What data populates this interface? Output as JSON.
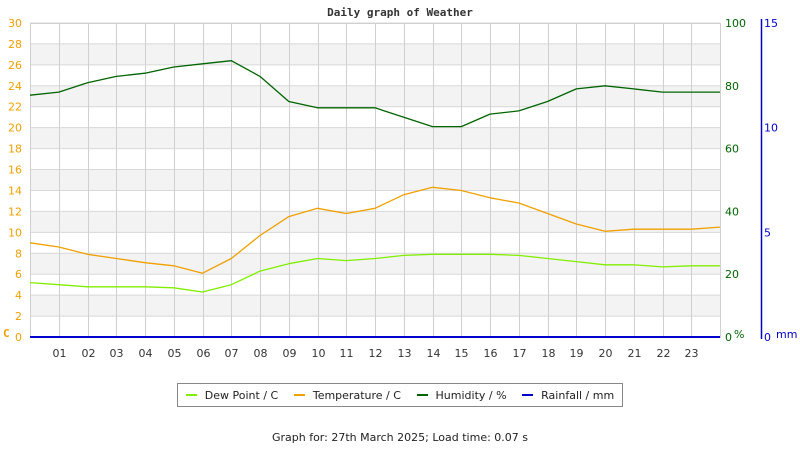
{
  "chart_data": {
    "type": "line",
    "title": "Daily graph of Weather",
    "x": [
      0,
      1,
      2,
      3,
      4,
      5,
      6,
      7,
      8,
      9,
      10,
      11,
      12,
      13,
      14,
      15,
      16,
      17,
      18,
      19,
      20,
      21,
      22,
      23,
      24
    ],
    "x_tick_labels": [
      "01",
      "02",
      "03",
      "04",
      "05",
      "06",
      "07",
      "08",
      "09",
      "10",
      "11",
      "12",
      "13",
      "14",
      "15",
      "16",
      "17",
      "18",
      "19",
      "20",
      "21",
      "22",
      "23"
    ],
    "xlabel": "",
    "axes": {
      "left": {
        "label": "C",
        "range": [
          0,
          30
        ],
        "ticks": [
          0,
          2,
          4,
          6,
          8,
          10,
          12,
          14,
          16,
          18,
          20,
          22,
          24,
          26,
          28,
          30
        ],
        "color": "#f0a000"
      },
      "right1": {
        "label": "%",
        "range": [
          0,
          100
        ],
        "ticks": [
          0,
          20,
          40,
          60,
          80,
          100
        ],
        "color": "#006400"
      },
      "right2": {
        "label": "mm",
        "range": [
          0,
          15
        ],
        "ticks": [
          0,
          5,
          10,
          15
        ],
        "color": "#0000cc"
      }
    },
    "series": [
      {
        "name": "Dew Point / C",
        "color": "#80ee00",
        "axis": "left",
        "values": [
          5.2,
          5.0,
          4.8,
          4.8,
          4.8,
          4.7,
          4.3,
          5.0,
          6.3,
          7.0,
          7.5,
          7.3,
          7.5,
          7.8,
          7.9,
          7.9,
          7.9,
          7.8,
          7.5,
          7.2,
          6.9,
          6.9,
          6.7,
          6.8,
          6.8
        ]
      },
      {
        "name": "Temperature / C",
        "color": "#f0a000",
        "axis": "left",
        "values": [
          9.0,
          8.6,
          7.9,
          7.5,
          7.1,
          6.8,
          6.1,
          7.5,
          9.7,
          11.5,
          12.3,
          11.8,
          12.3,
          13.6,
          14.3,
          14.0,
          13.3,
          12.8,
          11.8,
          10.8,
          10.1,
          10.3,
          10.3,
          10.3,
          10.5
        ]
      },
      {
        "name": "Humidity / %",
        "color": "#006400",
        "axis": "right1",
        "values": [
          77,
          78,
          81,
          83,
          84,
          86,
          87,
          88,
          83,
          75,
          73,
          73,
          73,
          70,
          67,
          67,
          71,
          72,
          75,
          79,
          80,
          79,
          78,
          78,
          78
        ]
      },
      {
        "name": "Rainfall / mm",
        "color": "#0000cc",
        "axis": "right2",
        "values": [
          0,
          0,
          0,
          0,
          0,
          0,
          0,
          0,
          0,
          0,
          0,
          0,
          0,
          0,
          0,
          0,
          0,
          0,
          0,
          0,
          0,
          0,
          0,
          0,
          0
        ]
      }
    ],
    "grid": true,
    "legend_position": "bottom"
  },
  "footer": {
    "text": "Graph for: 27th March 2025; Load time: 0.07 s"
  }
}
